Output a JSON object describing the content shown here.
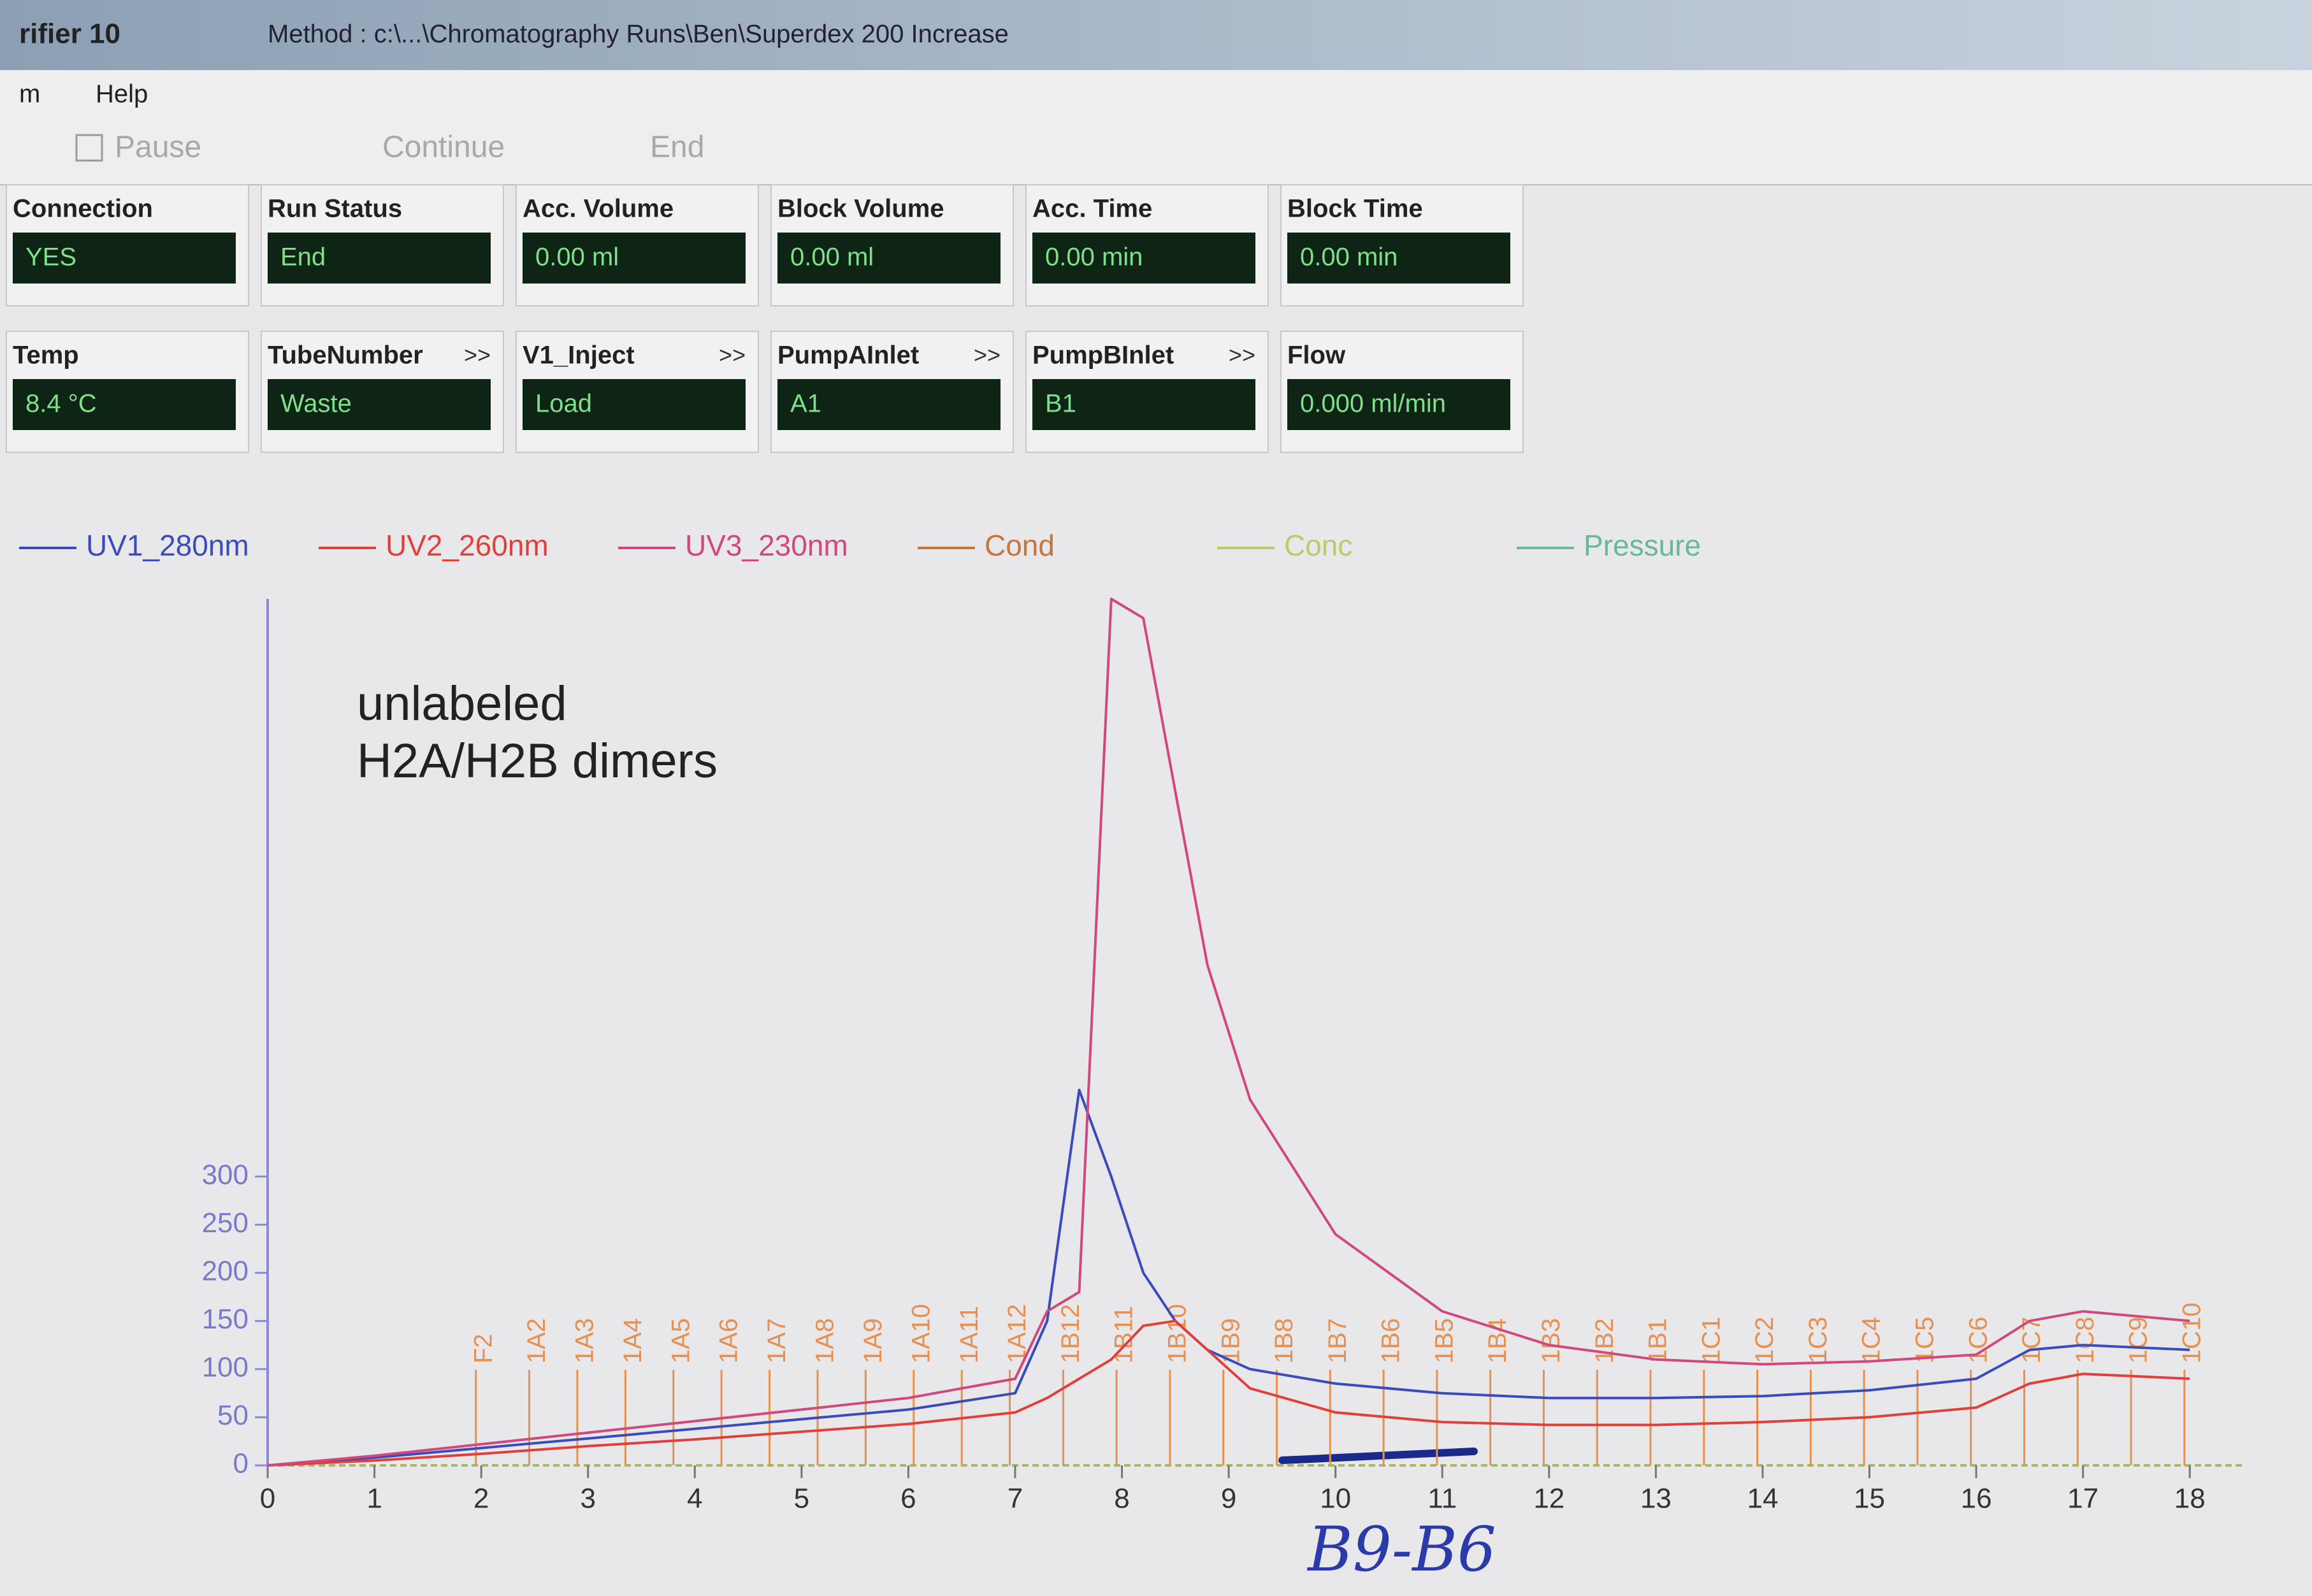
{
  "window": {
    "title": "rifier 10",
    "method": "Method : c:\\...\\Chromatography Runs\\Ben\\Superdex 200 Increase"
  },
  "menu": [
    "m",
    "Help"
  ],
  "buttons": [
    "Pause",
    "Continue",
    "End"
  ],
  "fields": [
    {
      "label": "Connection",
      "value": "YES"
    },
    {
      "label": "Temp",
      "value": "8.4 °C"
    },
    {
      "label": "Run Status",
      "value": "End"
    },
    {
      "label": "TubeNumber",
      "value": "Waste",
      "more": ">>"
    },
    {
      "label": "Acc. Volume",
      "value": "0.00 ml"
    },
    {
      "label": "V1_Inject",
      "value": "Load",
      "more": ">>"
    },
    {
      "label": "Block Volume",
      "value": "0.00 ml"
    },
    {
      "label": "PumpAInlet",
      "value": "A1",
      "more": ">>"
    },
    {
      "label": "Acc. Time",
      "value": "0.00 min"
    },
    {
      "label": "PumpBInlet",
      "value": "B1",
      "more": ">>"
    },
    {
      "label": "Block Time",
      "value": "0.00 min"
    },
    {
      "label": "Flow",
      "value": "0.000 ml/min"
    }
  ],
  "chart_data": {
    "type": "line",
    "annotation": [
      "unlabeled",
      "H2A/H2B dimers"
    ],
    "x": [
      0,
      1,
      2,
      3,
      4,
      5,
      6,
      7,
      7.3,
      7.6,
      7.9,
      8.2,
      8.5,
      8.8,
      9.2,
      10,
      11,
      12,
      13,
      14,
      15,
      16,
      16.5,
      17,
      18
    ],
    "series": [
      {
        "name": "UV1_280nm",
        "color": "#3a4cbc",
        "values": [
          0,
          8,
          18,
          28,
          38,
          48,
          58,
          75,
          150,
          390,
          300,
          200,
          150,
          120,
          100,
          85,
          75,
          70,
          70,
          72,
          78,
          90,
          120,
          125,
          120
        ]
      },
      {
        "name": "UV2_260nm",
        "color": "#e0403c",
        "values": [
          0,
          5,
          12,
          20,
          27,
          35,
          43,
          55,
          70,
          90,
          110,
          145,
          150,
          120,
          80,
          55,
          45,
          42,
          42,
          45,
          50,
          60,
          85,
          95,
          90
        ]
      },
      {
        "name": "UV3_230nm",
        "color": "#d0487e",
        "values": [
          0,
          10,
          22,
          34,
          46,
          58,
          70,
          90,
          160,
          180,
          900,
          880,
          700,
          520,
          380,
          240,
          160,
          125,
          110,
          105,
          108,
          115,
          150,
          160,
          150
        ]
      }
    ],
    "other_traces": [
      {
        "name": "Cond",
        "color": "#c8743c"
      },
      {
        "name": "Conc",
        "color": "#b8cc6a"
      },
      {
        "name": "Pressure",
        "color": "#6ab89a"
      }
    ],
    "xlim": [
      0,
      18.5
    ],
    "ylim": [
      0,
      900
    ],
    "xticks": [
      0,
      1,
      2,
      3,
      4,
      5,
      6,
      7,
      8,
      9,
      10,
      11,
      12,
      13,
      14,
      15,
      16,
      17,
      18
    ],
    "yticks": [
      0,
      50,
      100,
      150,
      200,
      250,
      300
    ],
    "fractions": {
      "labels": [
        "F2",
        "1A2",
        "1A3",
        "1A4",
        "1A5",
        "1A6",
        "1A7",
        "1A8",
        "1A9",
        "1A10",
        "1A11",
        "1A12",
        "1B12",
        "1B11",
        "1B10",
        "1B9",
        "1B8",
        "1B7",
        "1B6",
        "1B5",
        "1B4",
        "1B3",
        "1B2",
        "1B1",
        "1C1",
        "1C2",
        "1C3",
        "1C4",
        "1C5",
        "1C6",
        "1C7",
        "1C8",
        "1C9",
        "1C10"
      ],
      "x": [
        1.95,
        2.45,
        2.9,
        3.35,
        3.8,
        4.25,
        4.7,
        5.15,
        5.6,
        6.05,
        6.5,
        6.95,
        7.45,
        7.95,
        8.45,
        8.95,
        9.45,
        9.95,
        10.45,
        10.95,
        11.45,
        11.95,
        12.45,
        12.95,
        13.45,
        13.95,
        14.45,
        14.95,
        15.45,
        15.95,
        16.45,
        16.95,
        17.45,
        17.95
      ],
      "color": "#e89050"
    },
    "handwritten_note": "B9-B6"
  }
}
